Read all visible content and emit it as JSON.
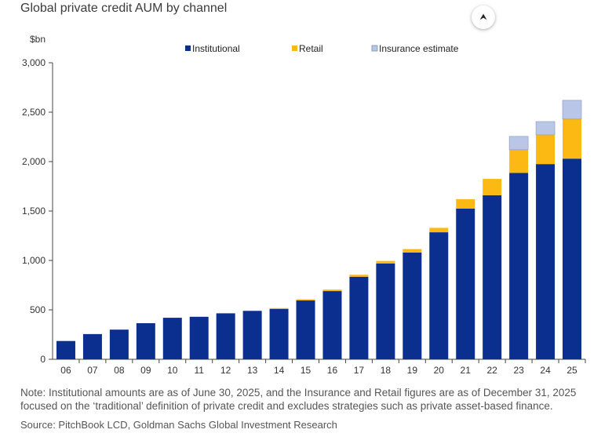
{
  "title": "Global private credit AUM by channel",
  "scroll_icon": "arrow-up-icon",
  "scroll_glyph": "⮝",
  "note_line1": "Note: Institutional amounts are as of June 30, 2025, and the Insurance and Retail figures are as of December 31, 2025",
  "note_line2": "focused on the ‘traditional’ definition of private credit and excludes strategies such as private asset-based finance.",
  "source": "Source: PitchBook LCD, Goldman Sachs Global Investment Research",
  "chart_data": {
    "type": "bar",
    "stacked": true,
    "unit_label": "$bn",
    "ylim": [
      0,
      3000
    ],
    "yticks": [
      0,
      500,
      1000,
      1500,
      2000,
      2500,
      3000
    ],
    "ytick_labels": [
      "0",
      "500",
      "1,000",
      "1,500",
      "2,000",
      "2,500",
      "3,000"
    ],
    "categories": [
      "06",
      "07",
      "08",
      "09",
      "10",
      "11",
      "12",
      "13",
      "14",
      "15",
      "16",
      "17",
      "18",
      "19",
      "20",
      "21",
      "22",
      "23",
      "24",
      "25"
    ],
    "legend_position": "top",
    "grid": false,
    "series": [
      {
        "name": "Institutional",
        "color": "#0a2f8f",
        "values": [
          185,
          255,
          300,
          365,
          420,
          430,
          465,
          490,
          510,
          595,
          690,
          835,
          970,
          1080,
          1285,
          1525,
          1660,
          1885,
          1975,
          2030
        ]
      },
      {
        "name": "Retail",
        "color": "#fdb913",
        "values": [
          0,
          0,
          0,
          0,
          0,
          0,
          0,
          0,
          8,
          12,
          15,
          20,
          25,
          35,
          45,
          95,
          165,
          235,
          295,
          400
        ]
      },
      {
        "name": "Insurance estimate",
        "color": "#b9c6e8",
        "values": [
          0,
          0,
          0,
          0,
          0,
          0,
          0,
          0,
          0,
          0,
          0,
          0,
          0,
          0,
          0,
          0,
          0,
          135,
          135,
          190
        ]
      }
    ]
  }
}
